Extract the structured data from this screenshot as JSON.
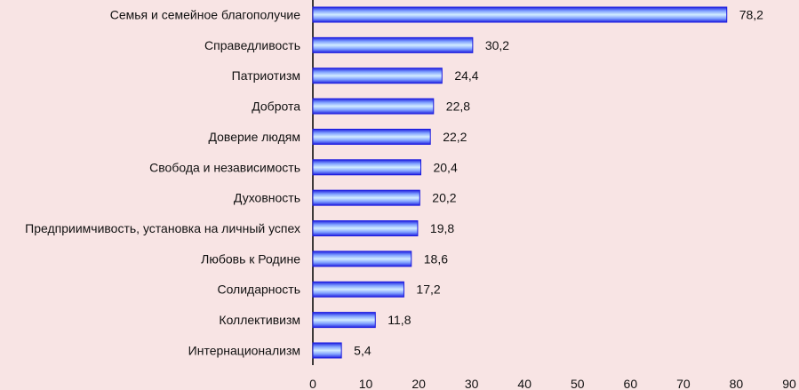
{
  "chart_data": {
    "type": "bar",
    "orientation": "horizontal",
    "title": "",
    "xlabel": "",
    "ylabel": "",
    "categories": [
      "Семья и семейное благополучие",
      "Справедливость",
      "Патриотизм",
      "Доброта",
      "Доверие людям",
      "Свобода и независимость",
      "Духовность",
      "Предприимчивость, установка на личный успех",
      "Любовь к Родине",
      "Солидарность",
      "Коллективизм",
      "Интернационализм"
    ],
    "values": [
      78.2,
      30.2,
      24.4,
      22.8,
      22.2,
      20.4,
      20.2,
      19.8,
      18.6,
      17.2,
      11.8,
      5.4
    ],
    "value_labels": [
      "78,2",
      "30,2",
      "24,4",
      "22,8",
      "22,2",
      "20,4",
      "20,2",
      "19,8",
      "18,6",
      "17,2",
      "11,8",
      "5,4"
    ],
    "xlim": [
      0,
      90
    ],
    "xticks": [
      "0",
      "10",
      "20",
      "30",
      "40",
      "50",
      "60",
      "70",
      "80",
      "90"
    ],
    "grid": false,
    "colors": {
      "bar_edge": "#1a1adf",
      "bar_light": "#c8e4ff",
      "background": "#f8e4e4"
    }
  }
}
